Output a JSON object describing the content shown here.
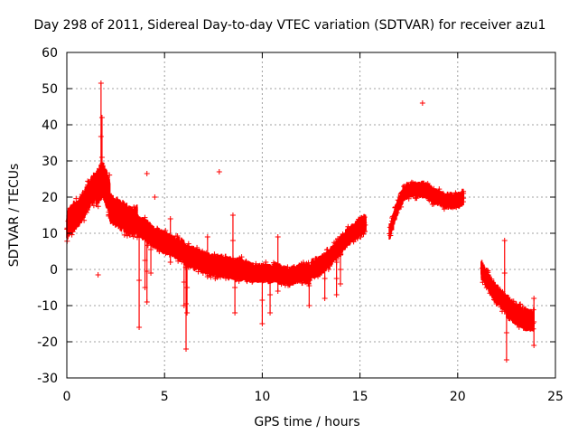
{
  "chart_data": {
    "type": "scatter",
    "title": "Day 298 of 2011, Sidereal Day-to-day VTEC variation (SDTVAR) for receiver azu1",
    "xlabel": "GPS time / hours",
    "ylabel": "SDTVAR / TECUs",
    "xlim": [
      0,
      25
    ],
    "ylim": [
      -30,
      60
    ],
    "xticks": [
      0,
      5,
      10,
      15,
      20,
      25
    ],
    "yticks": [
      -30,
      -20,
      -10,
      0,
      10,
      20,
      30,
      40,
      50,
      60
    ],
    "grid": true,
    "marker": "+",
    "series": [
      {
        "name": "azu1",
        "color": "#ff0000",
        "segments": [
          {
            "x0": 0.0,
            "x1": 1.5,
            "center": [
              12,
              14,
              15,
              16,
              18,
              20,
              22,
              23
            ],
            "spread": 4
          },
          {
            "x0": 1.5,
            "x1": 2.2,
            "center": [
              22,
              24,
              25,
              22,
              20
            ],
            "spread": 5
          },
          {
            "x0": 2.2,
            "x1": 3.6,
            "center": [
              17,
              16,
              15,
              14,
              13,
              14
            ],
            "spread": 4
          },
          {
            "x0": 3.6,
            "x1": 6.0,
            "center": [
              12,
              11,
              9,
              8,
              7,
              6,
              5
            ],
            "spread": 3
          },
          {
            "x0": 6.0,
            "x1": 9.0,
            "center": [
              4,
              3,
              2,
              1,
              1,
              0,
              0
            ],
            "spread": 3
          },
          {
            "x0": 9.0,
            "x1": 12.5,
            "center": [
              0,
              -1,
              -1,
              -1,
              -2,
              -1,
              -1
            ],
            "spread": 2.5
          },
          {
            "x0": 12.5,
            "x1": 15.3,
            "center": [
              0,
              1,
              3,
              6,
              9,
              11,
              13
            ],
            "spread": 2.5
          },
          {
            "x0": 16.5,
            "x1": 17.2,
            "center": [
              10,
              14,
              18,
              20
            ],
            "spread": 2
          },
          {
            "x0": 17.2,
            "x1": 18.7,
            "center": [
              21,
              22,
              22,
              22,
              21
            ],
            "spread": 2
          },
          {
            "x0": 18.7,
            "x1": 20.3,
            "center": [
              20,
              20,
              19,
              19,
              19,
              20
            ],
            "spread": 2
          },
          {
            "x0": 21.2,
            "x1": 22.5,
            "center": [
              0,
              -3,
              -6,
              -8,
              -10
            ],
            "spread": 2.5
          },
          {
            "x0": 22.5,
            "x1": 23.9,
            "center": [
              -10,
              -12,
              -13,
              -14,
              -14
            ],
            "spread": 3
          }
        ],
        "spikes": [
          {
            "x": 1.75,
            "y0": 22,
            "y1": 51.5
          },
          {
            "x": 1.8,
            "y0": 20,
            "y1": 42
          },
          {
            "x": 3.7,
            "y0": -16,
            "y1": 10
          },
          {
            "x": 4.0,
            "y0": -5,
            "y1": 10
          },
          {
            "x": 4.1,
            "y0": -9,
            "y1": 8
          },
          {
            "x": 4.3,
            "y0": -1,
            "y1": 12
          },
          {
            "x": 5.3,
            "y0": 2,
            "y1": 14
          },
          {
            "x": 6.0,
            "y0": -10,
            "y1": 3
          },
          {
            "x": 6.1,
            "y0": -22,
            "y1": 3
          },
          {
            "x": 6.15,
            "y0": -12,
            "y1": 2
          },
          {
            "x": 7.2,
            "y0": -2,
            "y1": 9
          },
          {
            "x": 8.5,
            "y0": 1,
            "y1": 15
          },
          {
            "x": 8.6,
            "y0": -12,
            "y1": 2
          },
          {
            "x": 10.0,
            "y0": -15,
            "y1": -2
          },
          {
            "x": 10.4,
            "y0": -12,
            "y1": -2
          },
          {
            "x": 10.8,
            "y0": -6,
            "y1": 9
          },
          {
            "x": 12.4,
            "y0": -10,
            "y1": 1
          },
          {
            "x": 13.2,
            "y0": -8,
            "y1": 3
          },
          {
            "x": 13.8,
            "y0": -7,
            "y1": 2
          },
          {
            "x": 14.0,
            "y0": -4,
            "y1": 4
          },
          {
            "x": 22.4,
            "y0": -10,
            "y1": 8
          },
          {
            "x": 22.5,
            "y0": -25,
            "y1": -10
          },
          {
            "x": 23.9,
            "y0": -21,
            "y1": -8
          }
        ],
        "outliers": [
          {
            "x": 1.6,
            "y": -1.5
          },
          {
            "x": 4.1,
            "y": 26.5
          },
          {
            "x": 4.5,
            "y": 20
          },
          {
            "x": 7.8,
            "y": 27
          },
          {
            "x": 18.2,
            "y": 46
          }
        ]
      }
    ]
  }
}
